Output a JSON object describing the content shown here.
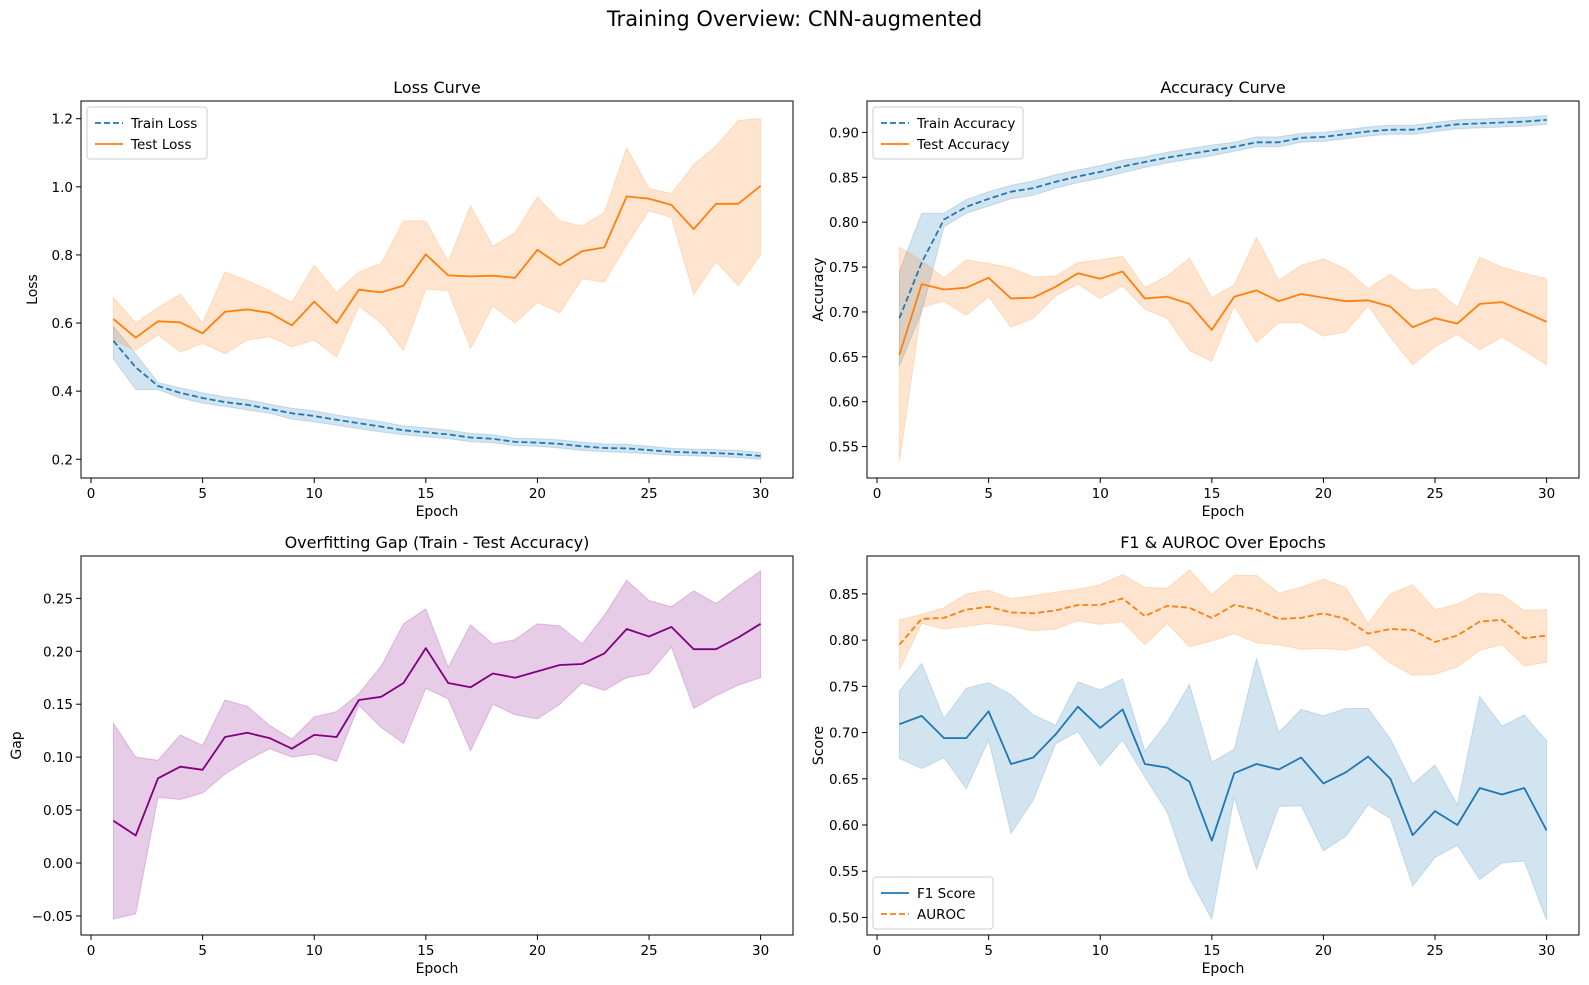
{
  "figure": {
    "suptitle": "Training Overview: CNN-augmented"
  },
  "chart_data": [
    {
      "type": "line",
      "title": "Loss Curve",
      "xlabel": "Epoch",
      "ylabel": "Loss",
      "xlim": [
        -0.45,
        31.45
      ],
      "ylim": [
        0.145,
        1.252
      ],
      "xticks": [
        0,
        5,
        10,
        15,
        20,
        25,
        30
      ],
      "yticks": [
        0.2,
        0.4,
        0.6,
        0.8,
        1.0,
        1.2
      ],
      "ytick_decimals": 1,
      "legend": "upper-left",
      "grid": false,
      "x": [
        1,
        2,
        3,
        4,
        5,
        6,
        7,
        8,
        9,
        10,
        11,
        12,
        13,
        14,
        15,
        16,
        17,
        18,
        19,
        20,
        21,
        22,
        23,
        24,
        25,
        26,
        27,
        28,
        29,
        30
      ],
      "series": [
        {
          "name": "Train Loss",
          "color": "#1f77b4",
          "style": "dashed",
          "values": [
            0.548,
            0.47,
            0.415,
            0.395,
            0.38,
            0.368,
            0.36,
            0.348,
            0.335,
            0.327,
            0.316,
            0.306,
            0.296,
            0.285,
            0.279,
            0.273,
            0.264,
            0.26,
            0.251,
            0.249,
            0.245,
            0.238,
            0.233,
            0.232,
            0.227,
            0.222,
            0.22,
            0.218,
            0.215,
            0.21
          ],
          "lower": [
            0.495,
            0.405,
            0.405,
            0.38,
            0.365,
            0.355,
            0.345,
            0.335,
            0.318,
            0.31,
            0.3,
            0.29,
            0.28,
            0.272,
            0.266,
            0.26,
            0.252,
            0.248,
            0.24,
            0.238,
            0.233,
            0.226,
            0.222,
            0.22,
            0.216,
            0.212,
            0.21,
            0.208,
            0.205,
            0.2
          ],
          "upper": [
            0.59,
            0.51,
            0.425,
            0.41,
            0.395,
            0.383,
            0.375,
            0.362,
            0.35,
            0.342,
            0.33,
            0.32,
            0.31,
            0.298,
            0.292,
            0.286,
            0.276,
            0.272,
            0.262,
            0.26,
            0.257,
            0.25,
            0.245,
            0.244,
            0.238,
            0.232,
            0.23,
            0.228,
            0.226,
            0.22
          ]
        },
        {
          "name": "Test Loss",
          "color": "#ff7f0e",
          "style": "solid",
          "values": [
            0.612,
            0.557,
            0.605,
            0.602,
            0.57,
            0.633,
            0.64,
            0.63,
            0.593,
            0.663,
            0.6,
            0.698,
            0.69,
            0.71,
            0.802,
            0.74,
            0.737,
            0.739,
            0.733,
            0.815,
            0.77,
            0.811,
            0.822,
            0.972,
            0.965,
            0.947,
            0.876,
            0.95,
            0.95,
            1.003
          ],
          "lower": [
            0.55,
            0.52,
            0.565,
            0.515,
            0.54,
            0.51,
            0.55,
            0.56,
            0.53,
            0.55,
            0.5,
            0.65,
            0.6,
            0.52,
            0.7,
            0.695,
            0.525,
            0.65,
            0.6,
            0.66,
            0.63,
            0.73,
            0.72,
            0.83,
            0.93,
            0.91,
            0.685,
            0.78,
            0.71,
            0.8
          ],
          "upper": [
            0.676,
            0.6,
            0.645,
            0.685,
            0.6,
            0.75,
            0.725,
            0.695,
            0.66,
            0.77,
            0.69,
            0.75,
            0.775,
            0.9,
            0.9,
            0.78,
            0.945,
            0.825,
            0.865,
            0.97,
            0.9,
            0.885,
            0.925,
            1.115,
            0.995,
            0.98,
            1.065,
            1.12,
            1.195,
            1.2
          ]
        }
      ]
    },
    {
      "type": "line",
      "title": "Accuracy Curve",
      "xlabel": "Epoch",
      "ylabel": "Accuracy",
      "xlim": [
        -0.45,
        31.45
      ],
      "ylim": [
        0.515,
        0.935
      ],
      "xticks": [
        0,
        5,
        10,
        15,
        20,
        25,
        30
      ],
      "yticks": [
        0.55,
        0.6,
        0.65,
        0.7,
        0.75,
        0.8,
        0.85,
        0.9
      ],
      "ytick_decimals": 2,
      "legend": "upper-left",
      "grid": false,
      "x": [
        1,
        2,
        3,
        4,
        5,
        6,
        7,
        8,
        9,
        10,
        11,
        12,
        13,
        14,
        15,
        16,
        17,
        18,
        19,
        20,
        21,
        22,
        23,
        24,
        25,
        26,
        27,
        28,
        29,
        30
      ],
      "series": [
        {
          "name": "Train Accuracy",
          "color": "#1f77b4",
          "style": "dashed",
          "values": [
            0.693,
            0.755,
            0.803,
            0.817,
            0.826,
            0.834,
            0.838,
            0.845,
            0.851,
            0.856,
            0.862,
            0.867,
            0.872,
            0.876,
            0.88,
            0.884,
            0.889,
            0.889,
            0.894,
            0.895,
            0.898,
            0.901,
            0.903,
            0.903,
            0.906,
            0.909,
            0.91,
            0.911,
            0.912,
            0.914
          ],
          "lower": [
            0.64,
            0.7,
            0.795,
            0.81,
            0.818,
            0.826,
            0.83,
            0.838,
            0.844,
            0.849,
            0.855,
            0.861,
            0.866,
            0.87,
            0.874,
            0.879,
            0.884,
            0.884,
            0.889,
            0.89,
            0.893,
            0.896,
            0.898,
            0.898,
            0.901,
            0.904,
            0.905,
            0.906,
            0.907,
            0.909
          ],
          "upper": [
            0.745,
            0.81,
            0.81,
            0.825,
            0.834,
            0.841,
            0.846,
            0.853,
            0.858,
            0.863,
            0.869,
            0.873,
            0.878,
            0.882,
            0.886,
            0.889,
            0.895,
            0.895,
            0.899,
            0.9,
            0.903,
            0.906,
            0.908,
            0.908,
            0.911,
            0.914,
            0.915,
            0.916,
            0.917,
            0.919
          ]
        },
        {
          "name": "Test Accuracy",
          "color": "#ff7f0e",
          "style": "solid",
          "values": [
            0.652,
            0.731,
            0.725,
            0.727,
            0.738,
            0.715,
            0.716,
            0.728,
            0.743,
            0.737,
            0.745,
            0.715,
            0.717,
            0.709,
            0.68,
            0.717,
            0.724,
            0.712,
            0.72,
            0.716,
            0.712,
            0.713,
            0.706,
            0.683,
            0.693,
            0.687,
            0.709,
            0.711,
            0.7,
            0.689
          ],
          "lower": [
            0.533,
            0.705,
            0.712,
            0.696,
            0.717,
            0.683,
            0.693,
            0.718,
            0.731,
            0.715,
            0.729,
            0.703,
            0.693,
            0.657,
            0.645,
            0.707,
            0.666,
            0.688,
            0.688,
            0.673,
            0.678,
            0.707,
            0.672,
            0.641,
            0.661,
            0.675,
            0.658,
            0.672,
            0.657,
            0.641
          ],
          "upper": [
            0.772,
            0.757,
            0.738,
            0.758,
            0.754,
            0.749,
            0.739,
            0.74,
            0.755,
            0.758,
            0.762,
            0.727,
            0.74,
            0.76,
            0.716,
            0.73,
            0.783,
            0.735,
            0.752,
            0.759,
            0.748,
            0.726,
            0.742,
            0.724,
            0.726,
            0.705,
            0.761,
            0.75,
            0.743,
            0.737
          ]
        }
      ]
    },
    {
      "type": "line",
      "title": "Overfitting Gap (Train - Test Accuracy)",
      "xlabel": "Epoch",
      "ylabel": "Gap",
      "xlim": [
        -0.45,
        31.45
      ],
      "ylim": [
        -0.068,
        0.29
      ],
      "xticks": [
        0,
        5,
        10,
        15,
        20,
        25,
        30
      ],
      "yticks": [
        -0.05,
        0.0,
        0.05,
        0.1,
        0.15,
        0.2,
        0.25
      ],
      "ytick_decimals": 2,
      "legend": "none",
      "grid": false,
      "x": [
        1,
        2,
        3,
        4,
        5,
        6,
        7,
        8,
        9,
        10,
        11,
        12,
        13,
        14,
        15,
        16,
        17,
        18,
        19,
        20,
        21,
        22,
        23,
        24,
        25,
        26,
        27,
        28,
        29,
        30
      ],
      "series": [
        {
          "name": "",
          "color": "#800080",
          "style": "solid",
          "values": [
            0.04,
            0.026,
            0.08,
            0.091,
            0.088,
            0.119,
            0.123,
            0.118,
            0.108,
            0.121,
            0.119,
            0.154,
            0.157,
            0.17,
            0.203,
            0.17,
            0.166,
            0.179,
            0.175,
            0.181,
            0.187,
            0.188,
            0.198,
            0.221,
            0.214,
            0.223,
            0.202,
            0.202,
            0.213,
            0.226
          ],
          "lower": [
            -0.053,
            -0.048,
            0.062,
            0.06,
            0.066,
            0.084,
            0.097,
            0.108,
            0.1,
            0.103,
            0.096,
            0.149,
            0.128,
            0.113,
            0.165,
            0.155,
            0.106,
            0.15,
            0.14,
            0.136,
            0.15,
            0.17,
            0.163,
            0.175,
            0.179,
            0.204,
            0.146,
            0.158,
            0.168,
            0.175
          ],
          "upper": [
            0.132,
            0.1,
            0.097,
            0.121,
            0.111,
            0.154,
            0.148,
            0.13,
            0.117,
            0.138,
            0.143,
            0.16,
            0.186,
            0.226,
            0.24,
            0.185,
            0.225,
            0.207,
            0.211,
            0.226,
            0.224,
            0.207,
            0.234,
            0.267,
            0.248,
            0.242,
            0.257,
            0.245,
            0.261,
            0.276
          ]
        }
      ]
    },
    {
      "type": "line",
      "title": "F1 & AUROC Over Epochs",
      "xlabel": "Epoch",
      "ylabel": "Score",
      "xlim": [
        -0.45,
        31.45
      ],
      "ylim": [
        0.481,
        0.891
      ],
      "xticks": [
        0,
        5,
        10,
        15,
        20,
        25,
        30
      ],
      "yticks": [
        0.5,
        0.55,
        0.6,
        0.65,
        0.7,
        0.75,
        0.8,
        0.85
      ],
      "ytick_decimals": 2,
      "legend": "lower-left",
      "grid": false,
      "x": [
        1,
        2,
        3,
        4,
        5,
        6,
        7,
        8,
        9,
        10,
        11,
        12,
        13,
        14,
        15,
        16,
        17,
        18,
        19,
        20,
        21,
        22,
        23,
        24,
        25,
        26,
        27,
        28,
        29,
        30
      ],
      "series": [
        {
          "name": "F1 Score",
          "color": "#1f77b4",
          "style": "solid",
          "values": [
            0.709,
            0.718,
            0.694,
            0.694,
            0.723,
            0.666,
            0.673,
            0.698,
            0.728,
            0.705,
            0.725,
            0.666,
            0.662,
            0.647,
            0.583,
            0.656,
            0.666,
            0.66,
            0.673,
            0.645,
            0.657,
            0.674,
            0.65,
            0.589,
            0.615,
            0.6,
            0.64,
            0.633,
            0.64,
            0.594
          ],
          "lower": [
            0.672,
            0.661,
            0.673,
            0.639,
            0.692,
            0.591,
            0.627,
            0.688,
            0.701,
            0.664,
            0.692,
            0.652,
            0.614,
            0.543,
            0.498,
            0.63,
            0.552,
            0.62,
            0.621,
            0.572,
            0.588,
            0.622,
            0.607,
            0.534,
            0.565,
            0.578,
            0.541,
            0.559,
            0.561,
            0.497
          ],
          "upper": [
            0.745,
            0.775,
            0.715,
            0.748,
            0.754,
            0.741,
            0.719,
            0.708,
            0.755,
            0.746,
            0.758,
            0.68,
            0.711,
            0.752,
            0.668,
            0.682,
            0.78,
            0.7,
            0.725,
            0.718,
            0.726,
            0.726,
            0.693,
            0.644,
            0.665,
            0.622,
            0.739,
            0.707,
            0.719,
            0.691
          ]
        },
        {
          "name": "AUROC",
          "color": "#ff7f0e",
          "style": "dashed",
          "values": [
            0.795,
            0.823,
            0.824,
            0.833,
            0.836,
            0.83,
            0.829,
            0.832,
            0.838,
            0.838,
            0.845,
            0.826,
            0.837,
            0.835,
            0.824,
            0.838,
            0.833,
            0.823,
            0.824,
            0.829,
            0.823,
            0.807,
            0.812,
            0.811,
            0.798,
            0.805,
            0.82,
            0.822,
            0.802,
            0.805
          ],
          "lower": [
            0.768,
            0.818,
            0.812,
            0.815,
            0.818,
            0.815,
            0.81,
            0.812,
            0.821,
            0.817,
            0.82,
            0.795,
            0.818,
            0.793,
            0.799,
            0.807,
            0.797,
            0.795,
            0.79,
            0.791,
            0.789,
            0.795,
            0.775,
            0.762,
            0.763,
            0.771,
            0.789,
            0.795,
            0.772,
            0.776
          ],
          "upper": [
            0.822,
            0.828,
            0.835,
            0.85,
            0.854,
            0.845,
            0.848,
            0.852,
            0.855,
            0.86,
            0.871,
            0.857,
            0.856,
            0.876,
            0.849,
            0.87,
            0.87,
            0.851,
            0.857,
            0.866,
            0.857,
            0.818,
            0.85,
            0.86,
            0.833,
            0.839,
            0.851,
            0.849,
            0.832,
            0.833
          ]
        }
      ]
    }
  ]
}
